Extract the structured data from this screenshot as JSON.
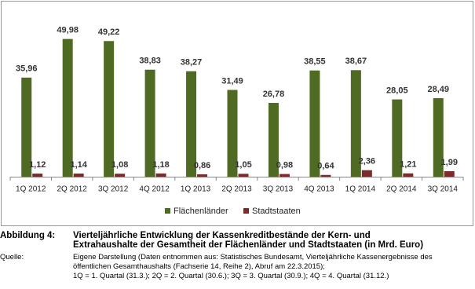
{
  "chart_data": {
    "type": "bar",
    "categories": [
      "1Q 2012",
      "2Q 2012",
      "3Q 2012",
      "4Q 2012",
      "1Q 2013",
      "2Q 2013",
      "3Q 2013",
      "4Q 2013",
      "1Q 2014",
      "2Q 2014",
      "3Q 2014"
    ],
    "series": [
      {
        "name": "Flächenländer",
        "color": "#4f6b23",
        "values": [
          35.96,
          49.98,
          49.22,
          38.83,
          38.27,
          31.49,
          26.78,
          38.55,
          38.67,
          28.05,
          28.49
        ],
        "value_labels": [
          "35,96",
          "49,98",
          "49,22",
          "38,83",
          "38,27",
          "31,49",
          "26,78",
          "38,55",
          "38,67",
          "28,05",
          "28,49"
        ]
      },
      {
        "name": "Stadtstaaten",
        "color": "#7f2a2a",
        "values": [
          1.12,
          1.14,
          1.08,
          1.18,
          0.86,
          1.05,
          0.98,
          0.64,
          2.36,
          1.21,
          1.99
        ],
        "value_labels": [
          "1,12",
          "1,14",
          "1,08",
          "1,18",
          "0,86",
          "1,05",
          "0,98",
          "0,64",
          "2,36",
          "1,21",
          "1,99"
        ]
      }
    ],
    "ylim": [
      0,
      55
    ],
    "legend": "bottom"
  },
  "caption": {
    "label": "Abbildung 4:",
    "title": [
      "Vierteljährliche Entwicklung der Kassenkreditbestände der Kern- und",
      "Extrahaushalte der Gesamtheit der Flächenländer und Stadtstaaten (in Mrd. Euro)"
    ],
    "source_label": "Quelle:",
    "source": [
      "Eigene Darstellung (Daten entnommen aus: Statistisches Bundesamt, Vierteljährliche Kassenergebnisse des",
      "öffentlichen Gesamthaushalts (Fachserie 14, Reihe 2), Abruf am 22.3.2015);",
      "1Q = 1. Quartal (31.3.); 2Q = 2. Quartal (30.6.); 3Q = 3. Quartal (30.9.); 4Q = 4. Quartal (31.12.)"
    ]
  }
}
